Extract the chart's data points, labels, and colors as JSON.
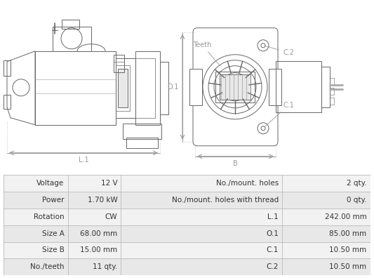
{
  "table_rows": [
    [
      "Voltage",
      "12 V",
      "No./mount. holes",
      "2 qty."
    ],
    [
      "Power",
      "1.70 kW",
      "No./mount. holes with thread",
      "0 qty."
    ],
    [
      "Rotation",
      "CW",
      "L.1",
      "242.00 mm"
    ],
    [
      "Size A",
      "68.00 mm",
      "O.1",
      "85.00 mm"
    ],
    [
      "Size B",
      "15.00 mm",
      "C.1",
      "10.50 mm"
    ],
    [
      "No./teeth",
      "11 qty.",
      "C.2",
      "10.50 mm"
    ]
  ],
  "bg_color": "#ffffff",
  "table_bg_light": "#f2f2f2",
  "table_bg_mid": "#e8e8e8",
  "table_border": "#bbbbbb",
  "lc": "#666666",
  "lc2": "#999999"
}
